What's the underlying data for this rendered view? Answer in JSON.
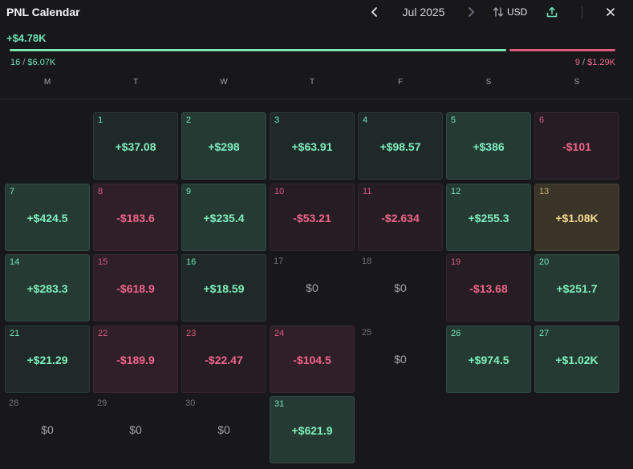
{
  "header": {
    "title": "PNL Calendar",
    "month": "Jul 2025",
    "currency": "USD"
  },
  "summary": {
    "total": "+$4.78K",
    "win_days": "16",
    "win_amount": "$6.07K",
    "loss_days": "9",
    "loss_amount": "$1.29K",
    "win_share": 0.824
  },
  "weekdays": [
    "M",
    "T",
    "W",
    "T",
    "F",
    "S",
    "S"
  ],
  "colors": {
    "positive": "#7ef0bf",
    "negative": "#f0648c",
    "best_day": "#f4d98f"
  },
  "days": [
    {
      "day": "1",
      "value": "+$37.08",
      "tone": "pos"
    },
    {
      "day": "2",
      "value": "+$298",
      "tone": "pos2"
    },
    {
      "day": "3",
      "value": "+$63.91",
      "tone": "pos"
    },
    {
      "day": "4",
      "value": "+$98.57",
      "tone": "pos"
    },
    {
      "day": "5",
      "value": "+$386",
      "tone": "pos2"
    },
    {
      "day": "6",
      "value": "-$101",
      "tone": "neg"
    },
    {
      "day": "7",
      "value": "+$424.5",
      "tone": "pos2"
    },
    {
      "day": "8",
      "value": "-$183.6",
      "tone": "neg2"
    },
    {
      "day": "9",
      "value": "+$235.4",
      "tone": "pos2"
    },
    {
      "day": "10",
      "value": "-$53.21",
      "tone": "neg"
    },
    {
      "day": "11",
      "value": "-$2.634",
      "tone": "neg"
    },
    {
      "day": "12",
      "value": "+$255.3",
      "tone": "pos2"
    },
    {
      "day": "13",
      "value": "+$1.08K",
      "tone": "best"
    },
    {
      "day": "14",
      "value": "+$283.3",
      "tone": "pos2"
    },
    {
      "day": "15",
      "value": "-$618.9",
      "tone": "neg2"
    },
    {
      "day": "16",
      "value": "+$18.59",
      "tone": "pos"
    },
    {
      "day": "17",
      "value": "$0",
      "tone": "zero"
    },
    {
      "day": "18",
      "value": "$0",
      "tone": "zero"
    },
    {
      "day": "19",
      "value": "-$13.68",
      "tone": "neg"
    },
    {
      "day": "20",
      "value": "+$251.7",
      "tone": "pos2"
    },
    {
      "day": "21",
      "value": "+$21.29",
      "tone": "pos"
    },
    {
      "day": "22",
      "value": "-$189.9",
      "tone": "neg2"
    },
    {
      "day": "23",
      "value": "-$22.47",
      "tone": "neg"
    },
    {
      "day": "24",
      "value": "-$104.5",
      "tone": "neg2"
    },
    {
      "day": "25",
      "value": "$0",
      "tone": "zero"
    },
    {
      "day": "26",
      "value": "+$974.5",
      "tone": "pos2"
    },
    {
      "day": "27",
      "value": "+$1.02K",
      "tone": "pos2"
    },
    {
      "day": "28",
      "value": "$0",
      "tone": "zero"
    },
    {
      "day": "29",
      "value": "$0",
      "tone": "zero"
    },
    {
      "day": "30",
      "value": "$0",
      "tone": "zero"
    },
    {
      "day": "31",
      "value": "+$621.9",
      "tone": "pos2"
    }
  ],
  "first_weekday_offset": 1
}
